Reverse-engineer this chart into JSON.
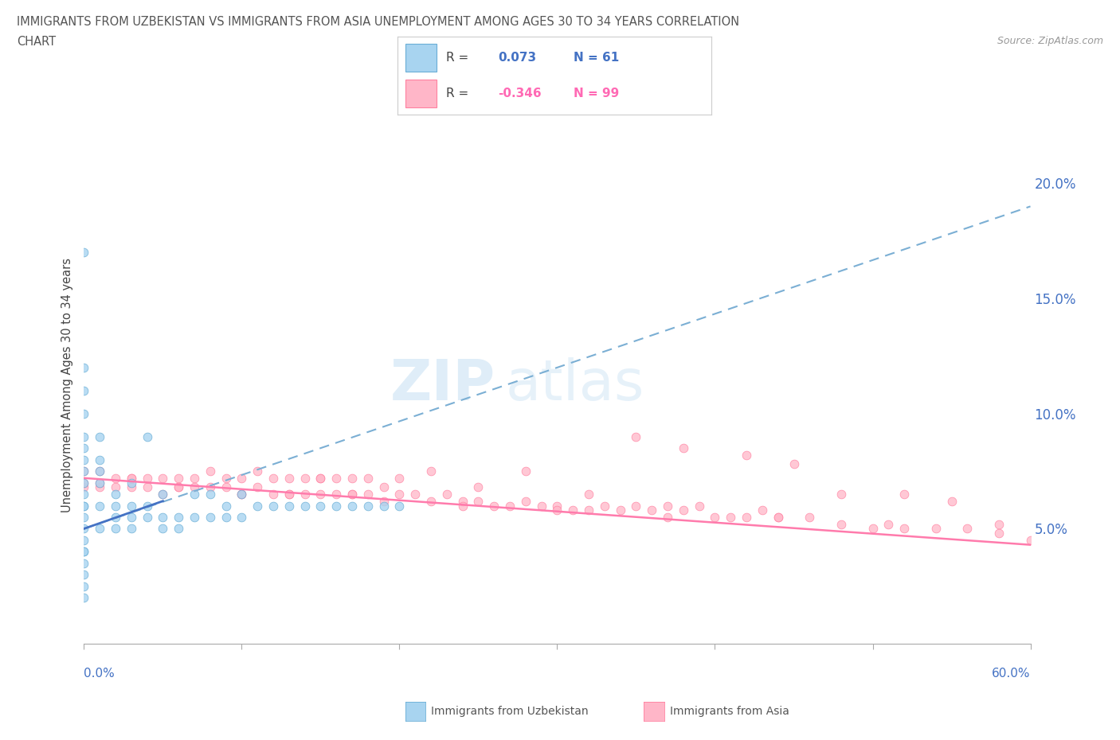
{
  "title_line1": "IMMIGRANTS FROM UZBEKISTAN VS IMMIGRANTS FROM ASIA UNEMPLOYMENT AMONG AGES 30 TO 34 YEARS CORRELATION",
  "title_line2": "CHART",
  "source_text": "Source: ZipAtlas.com",
  "watermark_ZIP": "ZIP",
  "watermark_atlas": "atlas",
  "ylabel": "Unemployment Among Ages 30 to 34 years",
  "xmin": 0.0,
  "xmax": 0.6,
  "ymin": 0.0,
  "ymax": 0.225,
  "yticks": [
    0.0,
    0.05,
    0.1,
    0.15,
    0.2
  ],
  "ytick_labels": [
    "",
    "5.0%",
    "10.0%",
    "15.0%",
    "20.0%"
  ],
  "xticks": [
    0.0,
    0.1,
    0.2,
    0.3,
    0.4,
    0.5,
    0.6
  ],
  "legend_uzbek_R": "0.073",
  "legend_uzbek_N": "61",
  "legend_asia_R": "-0.346",
  "legend_asia_N": "99",
  "uzbek_fill": "#A8D4F0",
  "uzbek_edge": "#6AAED6",
  "asia_fill": "#FFB6C8",
  "asia_edge": "#FF80A0",
  "trend_uzbek_color": "#7BAFD4",
  "trend_uzbek_solid_color": "#4472C4",
  "trend_asia_color": "#FF7BAC",
  "uzbek_scatter_x": [
    0.0,
    0.0,
    0.0,
    0.0,
    0.0,
    0.0,
    0.0,
    0.0,
    0.0,
    0.0,
    0.0,
    0.0,
    0.0,
    0.0,
    0.0,
    0.0,
    0.0,
    0.0,
    0.0,
    0.0,
    0.0,
    0.01,
    0.01,
    0.01,
    0.01,
    0.01,
    0.01,
    0.02,
    0.02,
    0.02,
    0.02,
    0.03,
    0.03,
    0.03,
    0.03,
    0.04,
    0.04,
    0.04,
    0.05,
    0.05,
    0.05,
    0.06,
    0.06,
    0.07,
    0.07,
    0.08,
    0.08,
    0.09,
    0.09,
    0.1,
    0.1,
    0.11,
    0.12,
    0.13,
    0.14,
    0.15,
    0.16,
    0.17,
    0.18,
    0.19,
    0.2
  ],
  "uzbek_scatter_y": [
    0.02,
    0.025,
    0.03,
    0.035,
    0.04,
    0.04,
    0.045,
    0.05,
    0.055,
    0.06,
    0.06,
    0.065,
    0.07,
    0.075,
    0.08,
    0.085,
    0.09,
    0.1,
    0.11,
    0.12,
    0.17,
    0.05,
    0.06,
    0.07,
    0.075,
    0.08,
    0.09,
    0.05,
    0.055,
    0.06,
    0.065,
    0.05,
    0.055,
    0.06,
    0.07,
    0.055,
    0.06,
    0.09,
    0.05,
    0.055,
    0.065,
    0.05,
    0.055,
    0.055,
    0.065,
    0.055,
    0.065,
    0.055,
    0.06,
    0.055,
    0.065,
    0.06,
    0.06,
    0.06,
    0.06,
    0.06,
    0.06,
    0.06,
    0.06,
    0.06,
    0.06
  ],
  "asia_scatter_x": [
    0.0,
    0.0,
    0.0,
    0.01,
    0.01,
    0.01,
    0.02,
    0.02,
    0.03,
    0.03,
    0.04,
    0.04,
    0.05,
    0.05,
    0.06,
    0.06,
    0.07,
    0.07,
    0.08,
    0.08,
    0.09,
    0.09,
    0.1,
    0.1,
    0.11,
    0.12,
    0.12,
    0.13,
    0.13,
    0.14,
    0.14,
    0.15,
    0.15,
    0.16,
    0.16,
    0.17,
    0.17,
    0.18,
    0.18,
    0.19,
    0.2,
    0.2,
    0.21,
    0.22,
    0.23,
    0.24,
    0.25,
    0.26,
    0.27,
    0.28,
    0.29,
    0.3,
    0.31,
    0.32,
    0.33,
    0.34,
    0.35,
    0.36,
    0.37,
    0.38,
    0.39,
    0.4,
    0.41,
    0.42,
    0.43,
    0.44,
    0.46,
    0.48,
    0.5,
    0.52,
    0.54,
    0.56,
    0.58,
    0.6,
    0.11,
    0.13,
    0.15,
    0.19,
    0.22,
    0.25,
    0.28,
    0.32,
    0.35,
    0.38,
    0.42,
    0.45,
    0.48,
    0.52,
    0.55,
    0.58,
    0.03,
    0.06,
    0.1,
    0.17,
    0.24,
    0.3,
    0.37,
    0.44,
    0.51
  ],
  "asia_scatter_y": [
    0.068,
    0.07,
    0.075,
    0.068,
    0.07,
    0.075,
    0.068,
    0.072,
    0.068,
    0.072,
    0.068,
    0.072,
    0.065,
    0.072,
    0.068,
    0.072,
    0.068,
    0.072,
    0.075,
    0.068,
    0.068,
    0.072,
    0.065,
    0.072,
    0.068,
    0.065,
    0.072,
    0.065,
    0.072,
    0.065,
    0.072,
    0.065,
    0.072,
    0.065,
    0.072,
    0.065,
    0.072,
    0.065,
    0.072,
    0.062,
    0.065,
    0.072,
    0.065,
    0.062,
    0.065,
    0.062,
    0.062,
    0.06,
    0.06,
    0.062,
    0.06,
    0.06,
    0.058,
    0.058,
    0.06,
    0.058,
    0.06,
    0.058,
    0.06,
    0.058,
    0.06,
    0.055,
    0.055,
    0.055,
    0.058,
    0.055,
    0.055,
    0.052,
    0.05,
    0.05,
    0.05,
    0.05,
    0.048,
    0.045,
    0.075,
    0.065,
    0.072,
    0.068,
    0.075,
    0.068,
    0.075,
    0.065,
    0.09,
    0.085,
    0.082,
    0.078,
    0.065,
    0.065,
    0.062,
    0.052,
    0.072,
    0.068,
    0.065,
    0.065,
    0.06,
    0.058,
    0.055,
    0.055,
    0.052
  ],
  "background_color": "#FFFFFF",
  "grid_color": "#DDDDDD",
  "trend_uzbek_y0": 0.05,
  "trend_uzbek_y1": 0.19,
  "trend_asia_y0": 0.072,
  "trend_asia_y1": 0.043
}
